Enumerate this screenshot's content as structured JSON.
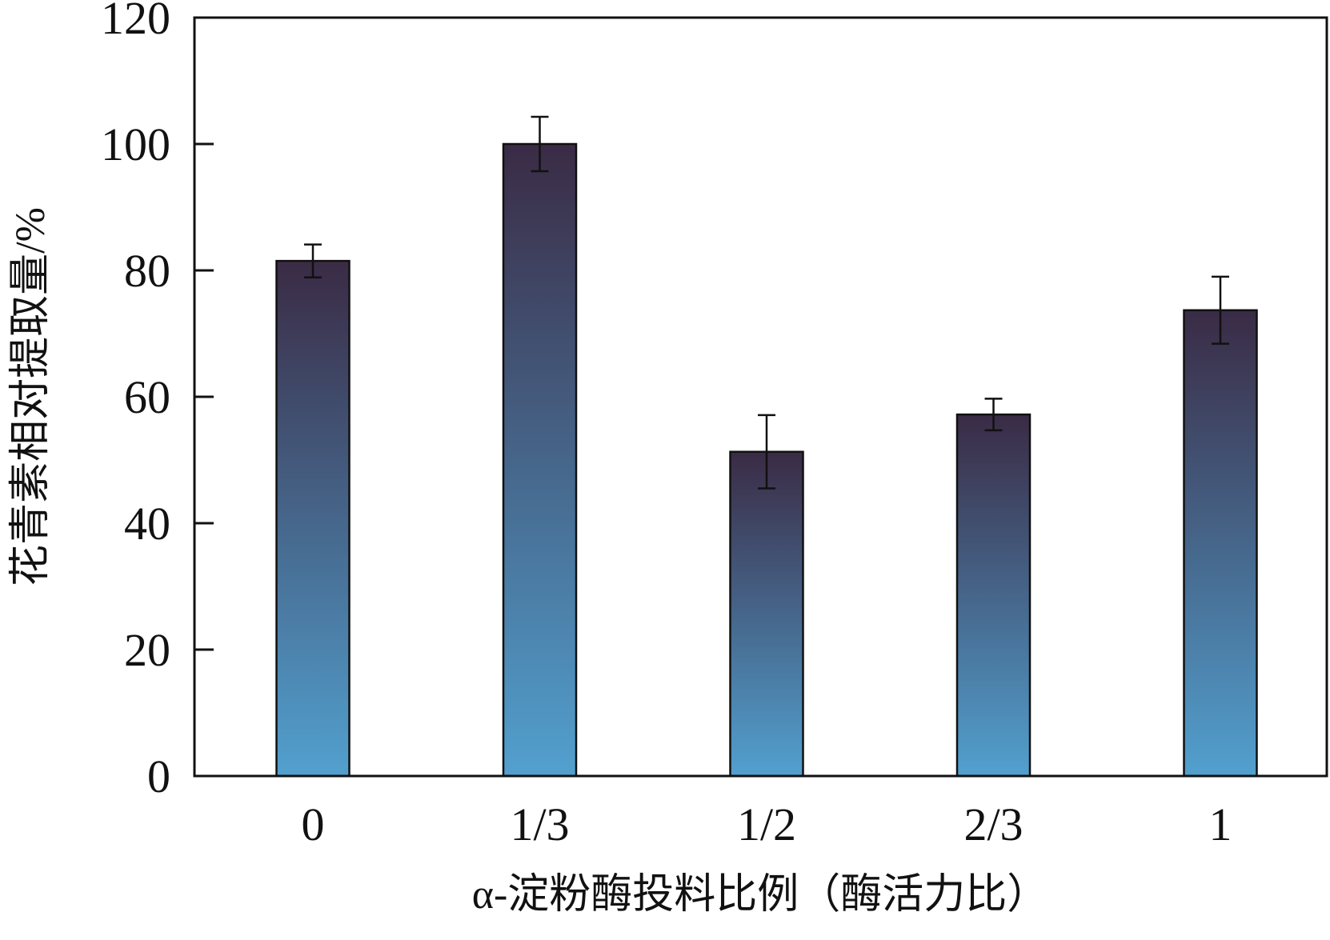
{
  "chart_data": {
    "type": "bar",
    "title": "",
    "xlabel": "α-淀粉酶投料比例（酶活力比）",
    "ylabel": "花青素相对提取量/%",
    "categories": [
      "0",
      "1/3",
      "1/2",
      "2/3",
      "1"
    ],
    "series": [
      {
        "values": [
          81.5,
          100,
          51.3,
          57.2,
          73.7
        ],
        "errors": [
          2.6,
          4.3,
          5.8,
          2.5,
          5.3
        ]
      }
    ],
    "ylim": [
      0,
      120
    ],
    "yticks": [
      0,
      20,
      40,
      60,
      80,
      100,
      120
    ],
    "grid": false,
    "legend": "none",
    "colors": {
      "bar_top": "#3a2b45",
      "bar_bottom": "#52a0cf",
      "axis": "#111111"
    }
  }
}
